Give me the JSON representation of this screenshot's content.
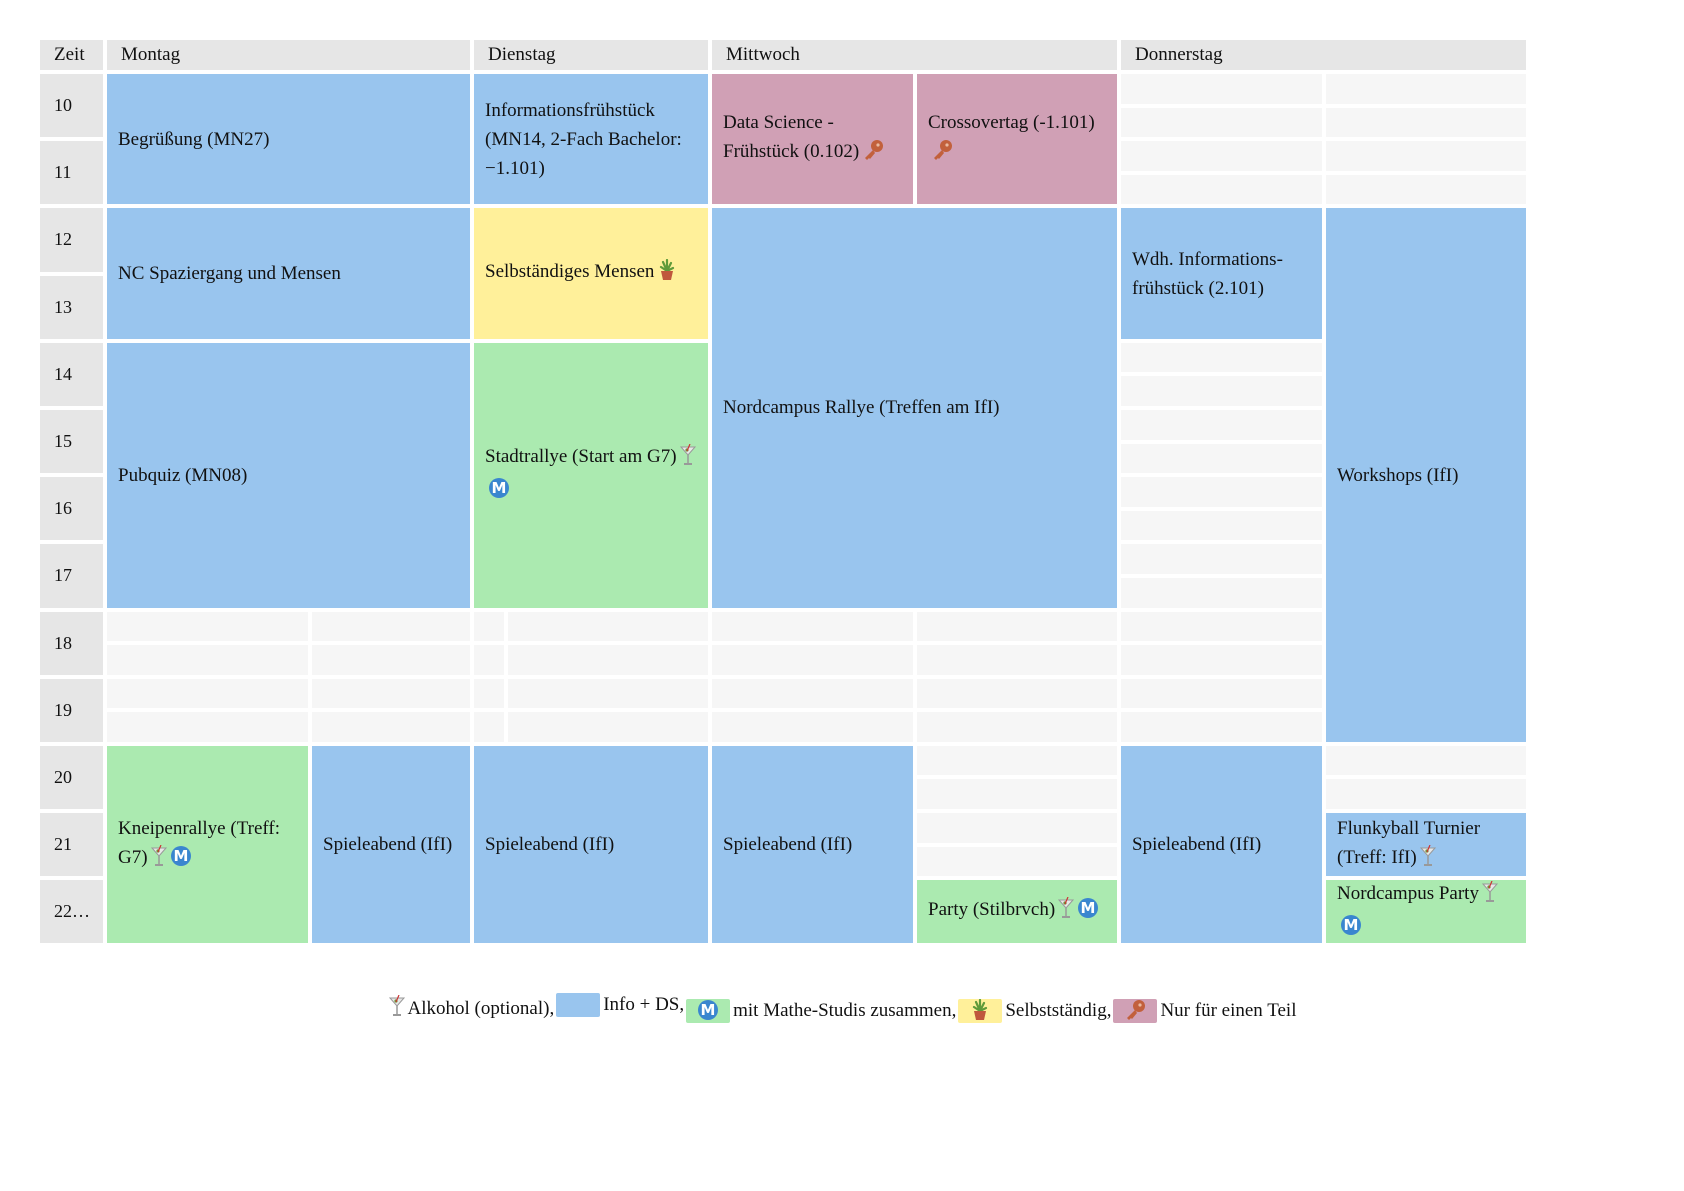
{
  "colors": {
    "info": "#99c5ee",
    "mathe": "#abeab0",
    "selbst": "#fff09a",
    "teil": "#d0a0b5",
    "header": "#e6e6e6",
    "empty": "#f6f6f6"
  },
  "header": {
    "zeit": "Zeit",
    "days": [
      "Montag",
      "Dienstag",
      "Mittwoch",
      "Donnerstag"
    ]
  },
  "hours": [
    "10",
    "11",
    "12",
    "13",
    "14",
    "15",
    "16",
    "17",
    "18",
    "19",
    "20",
    "21",
    "22…"
  ],
  "events": [
    {
      "day": 0,
      "lane": "both",
      "start": 10,
      "end": 12,
      "type": "info",
      "text": "Begrüßung (MN27)",
      "icons": []
    },
    {
      "day": 0,
      "lane": "both",
      "start": 12,
      "end": 14,
      "type": "info",
      "text": "NC Spaziergang und Mensen",
      "icons": []
    },
    {
      "day": 0,
      "lane": "both",
      "start": 14,
      "end": 18,
      "type": "info",
      "text": "Pubquiz (MN08)",
      "icons": []
    },
    {
      "day": 0,
      "lane": 1,
      "start": 20,
      "end": 23,
      "type": "mathe",
      "text": "Kneipenrallye (Treff: G7)",
      "icons": [
        "cocktail-icon",
        "mathe-icon"
      ]
    },
    {
      "day": 0,
      "lane": 2,
      "start": 20,
      "end": 23,
      "type": "info",
      "text": "Spieleabend (IfI)",
      "icons": []
    },
    {
      "day": 1,
      "lane": "both",
      "start": 10,
      "end": 12,
      "type": "info",
      "text": "Informationsfrühstück (MN14, 2-Fach Bachelor: −1.101)",
      "icons": []
    },
    {
      "day": 1,
      "lane": "both",
      "start": 12,
      "end": 14,
      "type": "selbst",
      "text": "Selbständiges Mensen",
      "icons": [
        "plant-icon"
      ]
    },
    {
      "day": 1,
      "lane": "both",
      "start": 14,
      "end": 18,
      "type": "mathe",
      "text": "Stadtrallye (Start am G7)",
      "icons": [
        "cocktail-icon",
        "mathe-icon"
      ]
    },
    {
      "day": 1,
      "lane": "both",
      "start": 20,
      "end": 23,
      "type": "info",
      "text": "Spieleabend (IfI)",
      "icons": []
    },
    {
      "day": 2,
      "lane": 1,
      "start": 10,
      "end": 12,
      "type": "teil",
      "text": "Data Science - Frühstück (0.102)",
      "icons": [
        "key-icon"
      ]
    },
    {
      "day": 2,
      "lane": 2,
      "start": 10,
      "end": 12,
      "type": "teil",
      "text": "Crossovertag (-1.101)",
      "icons": [
        "key-icon"
      ]
    },
    {
      "day": 2,
      "lane": "both",
      "start": 12,
      "end": 18,
      "type": "info",
      "text": "Nordcampus Rallye (Treffen am IfI)",
      "icons": []
    },
    {
      "day": 2,
      "lane": 1,
      "start": 20,
      "end": 23,
      "type": "info",
      "text": "Spieleabend (IfI)",
      "icons": []
    },
    {
      "day": 2,
      "lane": 2,
      "start": 22,
      "end": 23,
      "type": "mathe",
      "text": "Party (Stilbrvch)",
      "icons": [
        "cocktail-icon",
        "mathe-icon"
      ]
    },
    {
      "day": 3,
      "lane": 1,
      "start": 12,
      "end": 14,
      "type": "info",
      "text": "Wdh. Informations-frühstück (2.101)",
      "icons": []
    },
    {
      "day": 3,
      "lane": 2,
      "start": 12,
      "end": 20,
      "type": "info",
      "text": "Workshops (IfI)",
      "icons": []
    },
    {
      "day": 3,
      "lane": 1,
      "start": 20,
      "end": 23,
      "type": "info",
      "text": "Spieleabend (IfI)",
      "icons": []
    },
    {
      "day": 3,
      "lane": 2,
      "start": 21,
      "end": 22,
      "type": "info",
      "text": "Flunkyball Turnier (Treff: IfI)",
      "icons": [
        "cocktail-icon"
      ]
    },
    {
      "day": 3,
      "lane": 2,
      "start": 22,
      "end": 23,
      "type": "mathe",
      "text": "Nordcampus Party",
      "icons": [
        "cocktail-icon",
        "mathe-icon"
      ]
    }
  ],
  "legend": [
    {
      "icon": "cocktail-icon",
      "swatch": null,
      "label": "Alkohol (optional),"
    },
    {
      "icon": null,
      "swatch": "info",
      "label": "Info + DS,"
    },
    {
      "icon": "mathe-icon",
      "swatch": "mathe",
      "label": "mit Mathe-Studis zusammen,"
    },
    {
      "icon": "plant-icon",
      "swatch": "selbst",
      "label": "Selbstständig,"
    },
    {
      "icon": "key-icon",
      "swatch": "teil",
      "label": "Nur für einen Teil"
    }
  ]
}
